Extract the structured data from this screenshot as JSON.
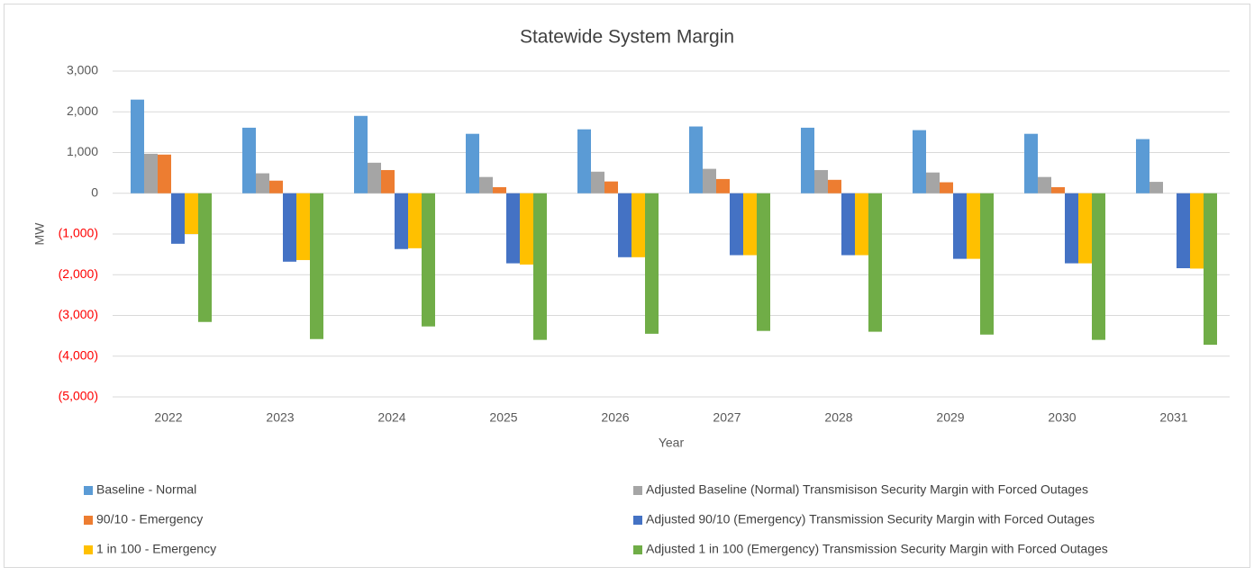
{
  "chart_data": {
    "type": "bar",
    "title": "Statewide System Margin",
    "x_label": "Year",
    "y_label": "MW",
    "categories": [
      "2022",
      "2023",
      "2024",
      "2025",
      "2026",
      "2027",
      "2028",
      "2029",
      "2030",
      "2031"
    ],
    "series": [
      {
        "name": "Baseline - Normal",
        "color": "#5b9bd5",
        "values": [
          2300,
          1610,
          1900,
          1460,
          1570,
          1640,
          1610,
          1550,
          1460,
          1330
        ]
      },
      {
        "name": "Adjusted Baseline (Normal) Transmisison Security Margin with Forced Outages",
        "color": "#a5a5a5",
        "values": [
          970,
          490,
          750,
          400,
          530,
          600,
          570,
          510,
          400,
          280
        ]
      },
      {
        "name": "90/10 - Emergency",
        "color": "#ed7d31",
        "values": [
          950,
          310,
          570,
          150,
          290,
          350,
          330,
          270,
          150,
          null
        ]
      },
      {
        "name": "Adjusted 90/10 (Emergency) Transmission Security Margin with Forced Outages",
        "color": "#4472c4",
        "values": [
          -1240,
          -1680,
          -1370,
          -1720,
          -1570,
          -1520,
          -1520,
          -1610,
          -1720,
          -1840
        ]
      },
      {
        "name": "1 in 100 - Emergency",
        "color": "#ffc000",
        "values": [
          -1000,
          -1640,
          -1350,
          -1750,
          -1570,
          -1520,
          -1520,
          -1610,
          -1720,
          -1850
        ]
      },
      {
        "name": "Adjusted 1 in 100 (Emergency) Transmission Security Margin with Forced Outages",
        "color": "#70ad47",
        "values": [
          -3160,
          -3580,
          -3270,
          -3600,
          -3450,
          -3380,
          -3400,
          -3470,
          -3600,
          -3720
        ]
      }
    ],
    "ylim": [
      -5000,
      3000
    ],
    "yticks": [
      {
        "value": -5000,
        "label": "(5,000)"
      },
      {
        "value": -4000,
        "label": "(4,000)"
      },
      {
        "value": -3000,
        "label": "(3,000)"
      },
      {
        "value": -2000,
        "label": "(2,000)"
      },
      {
        "value": -1000,
        "label": "(1,000)"
      },
      0,
      {
        "value": 1000,
        "label": "1,000"
      },
      {
        "value": 2000,
        "label": "2,000"
      },
      {
        "value": 3000,
        "label": "3,000"
      }
    ],
    "grid": true,
    "negative_tick_color": "#ff0000",
    "legend": "bottom"
  }
}
